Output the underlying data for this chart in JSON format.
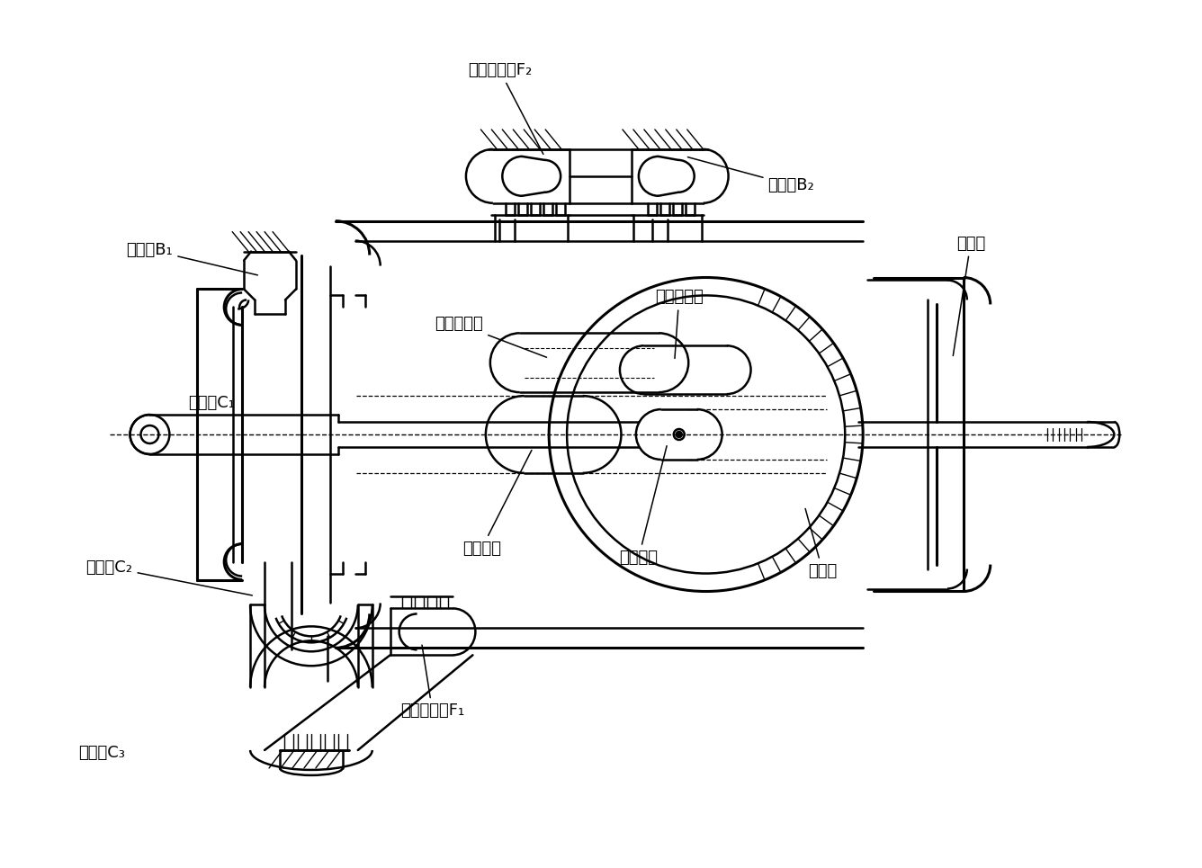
{
  "labels": {
    "danxiang_F2": "单向离合器F₂",
    "zhidong_B1": "制动器B₁",
    "zhidong_B2": "制动器B₂",
    "lihqi_C1": "离合器C₁",
    "lihqi_C2": "离合器C₂",
    "lihqi_C3": "离合器C₃",
    "danxiang_F1": "单向离合器F₁",
    "chang_star": "长行星齿轮",
    "duan_star": "短行星齿轮",
    "da_sun": "大太阳轮",
    "xiao_sun": "小太阳轮",
    "neichi": "内齿圈",
    "xingjia": "行星架"
  },
  "bg_color": "#ffffff",
  "line_color": "#000000",
  "font_size": 13,
  "lw": 1.8,
  "lw_thin": 1.0,
  "lw_thick": 2.2
}
